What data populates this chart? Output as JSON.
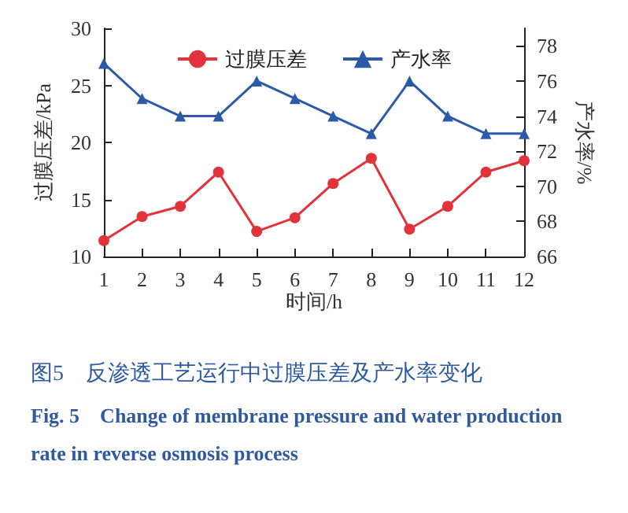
{
  "chart_data": {
    "type": "line",
    "xlabel": "时间/h",
    "ylabel": "过膜压差/kPa",
    "y2label": "产水率/%",
    "x": [
      1,
      2,
      3,
      4,
      5,
      6,
      7,
      8,
      9,
      10,
      11,
      12
    ],
    "xlim": [
      1,
      12
    ],
    "xticks": [
      1,
      2,
      3,
      4,
      5,
      6,
      7,
      8,
      9,
      10,
      11,
      12
    ],
    "ylim": [
      10,
      30
    ],
    "yticks": [
      10,
      15,
      20,
      25,
      30
    ],
    "y2lim": [
      66,
      79
    ],
    "y2ticks": [
      66,
      68,
      70,
      72,
      74,
      76,
      78
    ],
    "series": [
      {
        "name": "过膜压差",
        "color": "#e2323a",
        "marker": "circle",
        "values": [
          11.4,
          13.5,
          14.4,
          17.4,
          12.2,
          13.4,
          16.4,
          18.6,
          12.4,
          14.4,
          17.4,
          18.4
        ]
      },
      {
        "name": "产水率",
        "color": "#2b5ba6",
        "marker": "triangle",
        "axis": "y2",
        "values": [
          77,
          75,
          74,
          74,
          76,
          75,
          74,
          73,
          76,
          74,
          73,
          73
        ]
      }
    ],
    "legend": "top",
    "grid": false,
    "line_style": "solid",
    "annotations": [
      "图5　反渗透工艺运行中过膜压差及产水率变化",
      "Fig. 5　Change of membrane pressure and water production rate in reverse osmosis process"
    ]
  }
}
